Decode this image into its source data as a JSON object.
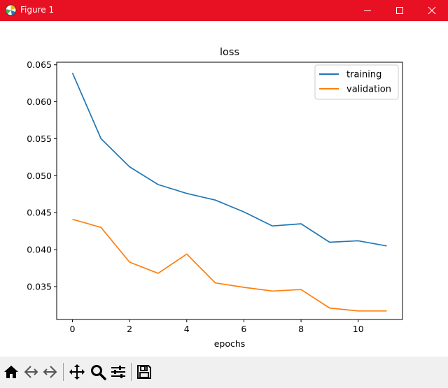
{
  "window": {
    "title": "Figure 1"
  },
  "toolbar": {
    "icons": [
      "home-icon",
      "back-icon",
      "forward-icon",
      "pan-icon",
      "zoom-icon",
      "configure-subplots-icon",
      "save-icon"
    ]
  },
  "colors": {
    "titlebar": "#e81123",
    "training": "#1f77b4",
    "validation": "#ff7f0e"
  },
  "chart_data": {
    "type": "line",
    "title": "loss",
    "xlabel": "epochs",
    "ylabel": "",
    "x": [
      0,
      1,
      2,
      3,
      4,
      5,
      6,
      7,
      8,
      9,
      10,
      11
    ],
    "xlim": [
      -0.55,
      11.55
    ],
    "ylim": [
      0.03055,
      0.06535
    ],
    "xticks": [
      0,
      2,
      4,
      6,
      8,
      10
    ],
    "xtick_labels": [
      "0",
      "2",
      "4",
      "6",
      "8",
      "10"
    ],
    "yticks": [
      0.035,
      0.04,
      0.045,
      0.05,
      0.055,
      0.06,
      0.065
    ],
    "ytick_labels": [
      "0.035",
      "0.040",
      "0.045",
      "0.050",
      "0.055",
      "0.060",
      "0.065"
    ],
    "legend": "upper right",
    "series": [
      {
        "name": "training",
        "color": "#1f77b4",
        "values": [
          0.0639,
          0.055,
          0.0512,
          0.0488,
          0.0476,
          0.0467,
          0.0451,
          0.0432,
          0.0435,
          0.041,
          0.0412,
          0.0405
        ]
      },
      {
        "name": "validation",
        "color": "#ff7f0e",
        "values": [
          0.0441,
          0.043,
          0.0383,
          0.0368,
          0.0394,
          0.0355,
          0.0349,
          0.0344,
          0.0346,
          0.0321,
          0.0317,
          0.0317
        ]
      }
    ]
  }
}
